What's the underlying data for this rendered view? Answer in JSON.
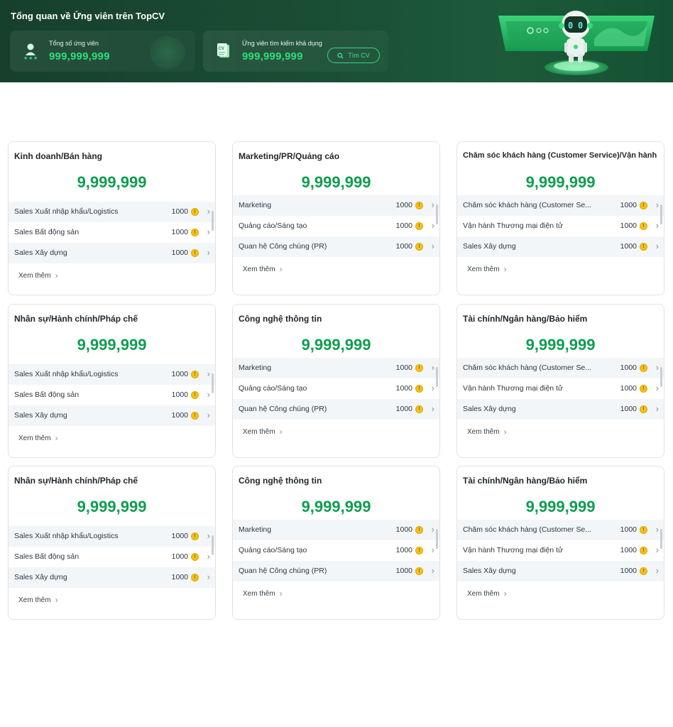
{
  "banner": {
    "title": "Tổng quan về Ứng viên trên TopCV",
    "total": {
      "label": "Tổng số ứng viên",
      "value": "999,999,999"
    },
    "available": {
      "label": "Ứng viên tìm kiếm khả dụng",
      "value": "999,999,999"
    },
    "find_button": "Tìm CV",
    "cv_badge": "CV",
    "colors": {
      "accent": "#2fdc7c",
      "banner_bg": "#16402c"
    }
  },
  "more_label": "Xem thêm",
  "cards": [
    {
      "title": "Kinh doanh/Bán hàng",
      "total": "9,999,999",
      "rows": [
        {
          "label": "Sales Xuất nhập khẩu/Logistics",
          "count": "1000"
        },
        {
          "label": "Sales Bất động sản",
          "count": "1000"
        },
        {
          "label": "Sales Xây dựng",
          "count": "1000"
        }
      ]
    },
    {
      "title": "Marketing/PR/Quảng cáo",
      "total": "9,999,999",
      "rows": [
        {
          "label": "Marketing",
          "count": "1000"
        },
        {
          "label": "Quảng cáo/Sáng tạo",
          "count": "1000"
        },
        {
          "label": "Quan hệ Công chúng (PR)",
          "count": "1000"
        }
      ]
    },
    {
      "title": "Chăm sóc khách hàng (Customer Service)/Vận hành",
      "total": "9,999,999",
      "rows": [
        {
          "label": "Chăm sóc khách hàng (Customer Se...",
          "count": "1000"
        },
        {
          "label": "Vận hành Thương mại điện tử",
          "count": "1000"
        },
        {
          "label": "Sales Xây dựng",
          "count": "1000"
        }
      ]
    },
    {
      "title": "Nhân sự/Hành chính/Pháp chế",
      "total": "9,999,999",
      "rows": [
        {
          "label": "Sales Xuất nhập khẩu/Logistics",
          "count": "1000"
        },
        {
          "label": "Sales Bất động sản",
          "count": "1000"
        },
        {
          "label": "Sales Xây dựng",
          "count": "1000"
        }
      ]
    },
    {
      "title": "Công nghệ thông tin",
      "total": "9,999,999",
      "rows": [
        {
          "label": "Marketing",
          "count": "1000"
        },
        {
          "label": "Quảng cáo/Sáng tạo",
          "count": "1000"
        },
        {
          "label": "Quan hệ Công chúng (PR)",
          "count": "1000"
        }
      ]
    },
    {
      "title": "Tài chính/Ngân hàng/Bảo hiểm",
      "total": "9,999,999",
      "rows": [
        {
          "label": "Chăm sóc khách hàng (Customer Se...",
          "count": "1000"
        },
        {
          "label": "Vận hành Thương mại điện tử",
          "count": "1000"
        },
        {
          "label": "Sales Xây dựng",
          "count": "1000"
        }
      ]
    },
    {
      "title": "Nhân sự/Hành chính/Pháp chế",
      "total": "9,999,999",
      "rows": [
        {
          "label": "Sales Xuất nhập khẩu/Logistics",
          "count": "1000"
        },
        {
          "label": "Sales Bất động sản",
          "count": "1000"
        },
        {
          "label": "Sales Xây dựng",
          "count": "1000"
        }
      ]
    },
    {
      "title": "Công nghệ thông tin",
      "total": "9,999,999",
      "rows": [
        {
          "label": "Marketing",
          "count": "1000"
        },
        {
          "label": "Quảng cáo/Sáng tạo",
          "count": "1000"
        },
        {
          "label": "Quan hệ Công chúng (PR)",
          "count": "1000"
        }
      ]
    },
    {
      "title": "Tài chính/Ngân hàng/Bảo hiểm",
      "total": "9,999,999",
      "rows": [
        {
          "label": "Chăm sóc khách hàng (Customer Se...",
          "count": "1000"
        },
        {
          "label": "Vận hành Thương mại điện tử",
          "count": "1000"
        },
        {
          "label": "Sales Xây dựng",
          "count": "1000"
        }
      ]
    }
  ]
}
